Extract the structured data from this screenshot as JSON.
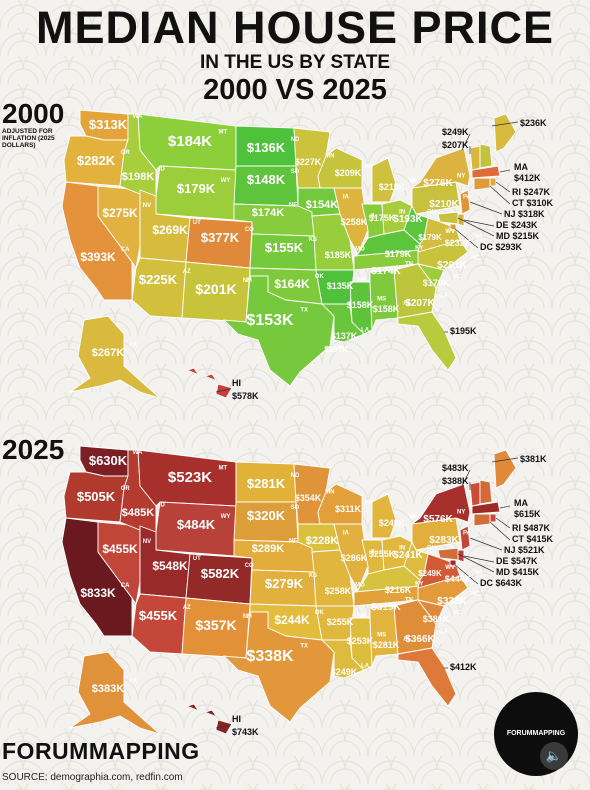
{
  "title": {
    "line1": "MEDIAN HOUSE PRICE",
    "line2": "IN THE US BY STATE",
    "line3": "2000 VS 2025"
  },
  "map2000": {
    "year": "2000",
    "note": "ADJUSTED FOR INFLATION (2025 DOLLARS)",
    "labels": {
      "WA": "$313K",
      "OR": "$282K",
      "CA": "$393K",
      "NV": "$275K",
      "ID": "$198K",
      "MT": "$184K",
      "WY": "$179K",
      "UT": "$269K",
      "CO": "$377K",
      "AZ": "$225K",
      "NM": "$201K",
      "ND": "$136K",
      "SD": "$148K",
      "NE": "$174K",
      "KS": "$155K",
      "OK": "$164K",
      "TX": "$153K",
      "MN": "$227K",
      "IA": "$154K",
      "MO": "$185K",
      "AR": "$135K",
      "LA": "$137K",
      "WI": "$209K",
      "IL": "$258K",
      "MS": "$158K",
      "MI": "$215K",
      "IN": "$175K",
      "TN": "$174K",
      "AL": "$158K",
      "KY": "$179K",
      "OH": "$193K",
      "GA": "$207K",
      "WV": "$179K",
      "NC": "$201K",
      "SC": "$178K",
      "VA": "$232K",
      "PA": "$210K",
      "NY": "$276K",
      "AK": "$267K",
      "HI": "$578K",
      "FL": "$195K",
      "ME": "$236K",
      "VT": "$249K",
      "NH": "$207K",
      "MA": "$412K",
      "RI": "$247K",
      "CT": "$310K",
      "NJ": "$318K",
      "DE": "$243K",
      "MD": "$215K",
      "DC": "$293K",
      "LA2": "$159K"
    }
  },
  "map2025": {
    "year": "2025",
    "labels": {
      "WA": "$630K",
      "OR": "$505K",
      "CA": "$833K",
      "NV": "$455K",
      "ID": "$485K",
      "MT": "$523K",
      "WY": "$484K",
      "UT": "$548K",
      "CO": "$582K",
      "AZ": "$455K",
      "NM": "$357K",
      "ND": "$281K",
      "SD": "$320K",
      "NE": "$289K",
      "KS": "$279K",
      "OK": "$244K",
      "TX": "$338K",
      "MN": "$354K",
      "IA": "$228K",
      "MO": "$258K",
      "AR": "$255K",
      "LA": "$249K",
      "WI": "$311K",
      "IL": "$286K",
      "MS": "$253K",
      "MI": "$249K",
      "IN": "$255K",
      "TN": "$319K",
      "AL": "$281K",
      "KY": "$216K",
      "OH": "$241K",
      "GA": "$366K",
      "WV": "$249K",
      "NC": "$338K",
      "SC": "$381K",
      "VA": "$444K",
      "PA": "$283K",
      "NY": "$576K",
      "AK": "$383K",
      "HI": "$743K",
      "FL": "$412K",
      "ME": "$381K",
      "VT": "$483K",
      "NH": "$388K",
      "MA": "$615K",
      "RI": "$487K",
      "CT": "$415K",
      "NJ": "$521K",
      "DE": "$547K",
      "MD": "$415K",
      "DC": "$643K"
    }
  },
  "abbr": [
    "WA",
    "OR",
    "CA",
    "NV",
    "ID",
    "MT",
    "WY",
    "UT",
    "CO",
    "AZ",
    "NM",
    "ND",
    "SD",
    "NE",
    "KS",
    "OK",
    "TX",
    "MN",
    "IA",
    "MO",
    "AR",
    "LA",
    "WI",
    "IL",
    "MS",
    "MI",
    "IN",
    "TN",
    "AL",
    "KY",
    "OH",
    "GA",
    "WV",
    "NC",
    "SC",
    "VA",
    "PA",
    "NY",
    "AK",
    "HI",
    "FL",
    "ME",
    "VT",
    "NH",
    "MA",
    "RI",
    "CT",
    "NJ",
    "DE",
    "MD",
    "DC"
  ],
  "footer": {
    "brand": "FORUMMAPPING",
    "source": "SOURCE: demographia.com, redfin.com",
    "badge": "FORUMMAPPING",
    "sound_icon": "speaker-icon"
  },
  "colors": {
    "2000": {
      "WA": "#e5a43a",
      "OR": "#e2b23c",
      "CA": "#e5923c",
      "NV": "#e1b23f",
      "ID": "#a8cd3d",
      "MT": "#8ccf3a",
      "WY": "#9cce3c",
      "UT": "#d7bb3e",
      "CO": "#e0893a",
      "AZ": "#d2c03c",
      "NM": "#c7c43c",
      "ND": "#4ec23b",
      "SD": "#5dc43b",
      "NE": "#86cc3d",
      "KS": "#77c93c",
      "OK": "#7fca3c",
      "TX": "#76c83c",
      "MN": "#cdc23c",
      "IA": "#74c83c",
      "MO": "#98cd3c",
      "AR": "#4fc13b",
      "LA": "#69c63c",
      "WI": "#c6c33c",
      "IL": "#dcb43e",
      "MS": "#5ec23b",
      "MI": "#cfc03e",
      "IN": "#88cc3c",
      "TN": "#8acb3c",
      "AL": "#7ec93c",
      "KY": "#5cc53b",
      "OH": "#a7cd3d",
      "GA": "#bdc53d",
      "WV": "#5cc53b",
      "NC": "#c7c43c",
      "SC": "#9ccd3d",
      "VA": "#d2bd3e",
      "PA": "#c8c13d",
      "NY": "#dcb33e",
      "AK": "#d9ba3e",
      "HI": "#c8403a",
      "FL": "#b7cb3d",
      "ME": "#d8ba3e",
      "VT": "#d9b73e",
      "NH": "#c3c33e",
      "MA": "#e06b3a",
      "RI": "#d6ad3e",
      "CT": "#e09a3a",
      "NJ": "#e0943a",
      "DE": "#d0b33e",
      "MD": "#c7c13e",
      "DC": "#dd9c3a"
    },
    "2025": {
      "WA": "#7c1f24",
      "OR": "#b13a2f",
      "CA": "#6a1a1f",
      "NV": "#c1463a",
      "ID": "#b53b31",
      "MT": "#a8302c",
      "WY": "#b8413a",
      "UT": "#9a2a29",
      "CO": "#942a27",
      "AZ": "#c4473a",
      "NM": "#e39138",
      "ND": "#e2b238",
      "SD": "#dd9d38",
      "NE": "#e2ad3b",
      "KS": "#e2b03c",
      "OK": "#e3bc3d",
      "TX": "#e2983a",
      "MN": "#e0943a",
      "IA": "#dbc03e",
      "MO": "#e0b63e",
      "AR": "#e0b83e",
      "LA": "#dcbb3e",
      "WI": "#e29f3a",
      "IL": "#e2b03e",
      "MS": "#dcbd3e",
      "MI": "#e2b63e",
      "IN": "#e0b83e",
      "TN": "#e2a23a",
      "AL": "#e2b33e",
      "KY": "#d6c23e",
      "OH": "#e1b83e",
      "GA": "#e08d3a",
      "WV": "#dcbb3e",
      "NC": "#e29a3a",
      "SC": "#e0893a",
      "VA": "#d25a36",
      "PA": "#e2ae3c",
      "NY": "#a8302c",
      "AK": "#e0923a",
      "HI": "#8a2326",
      "FL": "#de7a39",
      "ME": "#e08a39",
      "VT": "#cc4d37",
      "NH": "#d36a38",
      "MA": "#9c2a28",
      "RI": "#c8473a",
      "CT": "#d06e39",
      "NJ": "#c14838",
      "DE": "#b8403a",
      "MD": "#d06e39",
      "DC": "#9b2a28"
    }
  }
}
